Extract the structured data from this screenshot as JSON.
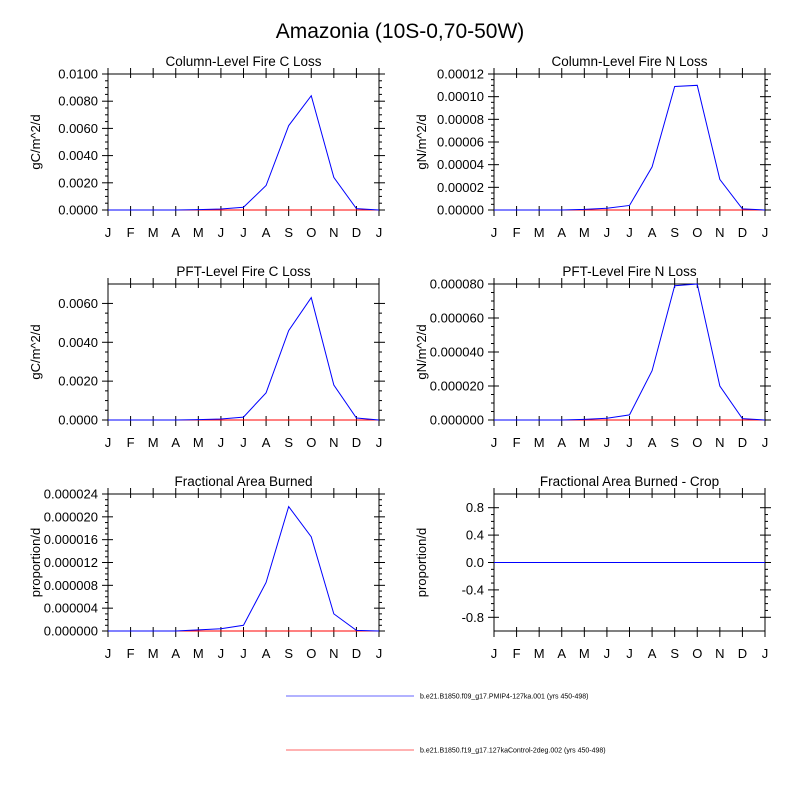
{
  "figure": {
    "title": "Amazonia (10S-0,70-50W)"
  },
  "chart_data": [
    {
      "type": "line",
      "title": "Column-Level Fire C Loss",
      "ylabel": "gC/m^2/d",
      "xlabel": "",
      "categories": [
        "J",
        "F",
        "M",
        "A",
        "M",
        "J",
        "J",
        "A",
        "S",
        "O",
        "N",
        "D",
        "J"
      ],
      "ylim": [
        0,
        0.01
      ],
      "yticks": [
        0,
        0.002,
        0.004,
        0.006,
        0.008,
        0.01
      ],
      "ytick_labels": [
        "0.0000",
        "0.0020",
        "0.0040",
        "0.0060",
        "0.0080",
        "0.0100"
      ],
      "series": [
        {
          "name": "b.e21.B1850.f09_g17.PMIP4-127ka.001 (yrs 450-498)",
          "color": "#0000ff",
          "values": [
            0,
            0,
            0,
            0,
            3e-05,
            7e-05,
            0.0002,
            0.0018,
            0.0062,
            0.0084,
            0.0024,
            0.0001,
            0
          ]
        },
        {
          "name": "b.e21.B1850.f19_g17.127kaControl-2deg.002 (yrs 450-498)",
          "color": "#ff0000",
          "values": [
            0,
            0,
            0,
            0,
            0,
            0,
            0,
            0,
            0,
            0,
            0,
            0,
            0
          ]
        }
      ]
    },
    {
      "type": "line",
      "title": "Column-Level Fire N Loss",
      "ylabel": "gN/m^2/d",
      "xlabel": "",
      "categories": [
        "J",
        "F",
        "M",
        "A",
        "M",
        "J",
        "J",
        "A",
        "S",
        "O",
        "N",
        "D",
        "J"
      ],
      "ylim": [
        0,
        0.00012
      ],
      "yticks": [
        0,
        2e-05,
        4e-05,
        6e-05,
        8e-05,
        0.0001,
        0.00012
      ],
      "ytick_labels": [
        "0.00000",
        "0.00002",
        "0.00004",
        "0.00006",
        "0.00008",
        "0.00010",
        "0.00012"
      ],
      "series": [
        {
          "name": "b.e21.B1850.f09_g17.PMIP4-127ka.001 (yrs 450-498)",
          "color": "#0000ff",
          "values": [
            0,
            0,
            0,
            0,
            5e-07,
            1.5e-06,
            4e-06,
            3.8e-05,
            0.000109,
            0.00011,
            2.7e-05,
            1e-06,
            0
          ]
        },
        {
          "name": "b.e21.B1850.f19_g17.127kaControl-2deg.002 (yrs 450-498)",
          "color": "#ff0000",
          "values": [
            0,
            0,
            0,
            0,
            0,
            0,
            0,
            0,
            0,
            0,
            0,
            0,
            0
          ]
        }
      ]
    },
    {
      "type": "line",
      "title": "PFT-Level Fire C Loss",
      "ylabel": "gC/m^2/d",
      "xlabel": "",
      "categories": [
        "J",
        "F",
        "M",
        "A",
        "M",
        "J",
        "J",
        "A",
        "S",
        "O",
        "N",
        "D",
        "J"
      ],
      "ylim": [
        0,
        0.007
      ],
      "yticks": [
        0,
        0.002,
        0.004,
        0.006
      ],
      "ytick_labels": [
        "0.0000",
        "0.0020",
        "0.0040",
        "0.0060"
      ],
      "series": [
        {
          "name": "b.e21.B1850.f09_g17.PMIP4-127ka.001 (yrs 450-498)",
          "color": "#0000ff",
          "values": [
            0,
            0,
            0,
            0,
            2e-05,
            5e-05,
            0.00015,
            0.0014,
            0.0046,
            0.0063,
            0.0018,
            0.0001,
            0
          ]
        },
        {
          "name": "b.e21.B1850.f19_g17.127kaControl-2deg.002 (yrs 450-498)",
          "color": "#ff0000",
          "values": [
            0,
            0,
            0,
            0,
            0,
            0,
            0,
            0,
            0,
            0,
            0,
            0,
            0
          ]
        }
      ]
    },
    {
      "type": "line",
      "title": "PFT-Level Fire N Loss",
      "ylabel": "gN/m^2/d",
      "xlabel": "",
      "categories": [
        "J",
        "F",
        "M",
        "A",
        "M",
        "J",
        "J",
        "A",
        "S",
        "O",
        "N",
        "D",
        "J"
      ],
      "ylim": [
        0,
        8e-05
      ],
      "yticks": [
        0,
        2e-05,
        4e-05,
        6e-05,
        8e-05
      ],
      "ytick_labels": [
        "0.000000",
        "0.000020",
        "0.000040",
        "0.000060",
        "0.000080"
      ],
      "series": [
        {
          "name": "b.e21.B1850.f09_g17.PMIP4-127ka.001 (yrs 450-498)",
          "color": "#0000ff",
          "values": [
            0,
            0,
            0,
            0,
            4e-07,
            1e-06,
            3e-06,
            2.9e-05,
            7.9e-05,
            8e-05,
            2e-05,
            8e-07,
            0
          ]
        },
        {
          "name": "b.e21.B1850.f19_g17.127kaControl-2deg.002 (yrs 450-498)",
          "color": "#ff0000",
          "values": [
            0,
            0,
            0,
            0,
            0,
            0,
            0,
            0,
            0,
            0,
            0,
            0,
            0
          ]
        }
      ]
    },
    {
      "type": "line",
      "title": "Fractional Area Burned",
      "ylabel": "proportion/d",
      "xlabel": "",
      "categories": [
        "J",
        "F",
        "M",
        "A",
        "M",
        "J",
        "J",
        "A",
        "S",
        "O",
        "N",
        "D",
        "J"
      ],
      "ylim": [
        0,
        2.4e-05
      ],
      "yticks": [
        0,
        4e-06,
        8e-06,
        1.2e-05,
        1.6e-05,
        2e-05,
        2.4e-05
      ],
      "ytick_labels": [
        "0.000000",
        "0.000004",
        "0.000008",
        "0.000012",
        "0.000016",
        "0.000020",
        "0.000024"
      ],
      "series": [
        {
          "name": "b.e21.B1850.f09_g17.PMIP4-127ka.001 (yrs 450-498)",
          "color": "#0000ff",
          "values": [
            0,
            0,
            0,
            0,
            2e-07,
            4e-07,
            1e-06,
            8.5e-06,
            2.18e-05,
            1.65e-05,
            3e-06,
            1e-07,
            0
          ]
        },
        {
          "name": "b.e21.B1850.f19_g17.127kaControl-2deg.002 (yrs 450-498)",
          "color": "#ff0000",
          "values": [
            0,
            0,
            0,
            0,
            0,
            0,
            0,
            0,
            0,
            0,
            0,
            0,
            0
          ]
        }
      ]
    },
    {
      "type": "line",
      "title": "Fractional Area Burned - Crop",
      "ylabel": "proportion/d",
      "xlabel": "",
      "categories": [
        "J",
        "F",
        "M",
        "A",
        "M",
        "J",
        "J",
        "A",
        "S",
        "O",
        "N",
        "D",
        "J"
      ],
      "ylim": [
        -1,
        1
      ],
      "yticks": [
        -0.8,
        -0.4,
        0,
        0.4,
        0.8
      ],
      "ytick_labels": [
        "-0.8",
        "-0.4",
        "0.0",
        "0.4",
        "0.8"
      ],
      "series": [
        {
          "name": "b.e21.B1850.f09_g17.PMIP4-127ka.001 (yrs 450-498)",
          "color": "#0000ff",
          "values": [
            0,
            0,
            0,
            0,
            0,
            0,
            0,
            0,
            0,
            0,
            0,
            0,
            0
          ]
        },
        {
          "name": "b.e21.B1850.f19_g17.127kaControl-2deg.002 (yrs 450-498)",
          "color": "#ff0000",
          "values": [
            0,
            0,
            0,
            0,
            0,
            0,
            0,
            0,
            0,
            0,
            0,
            0,
            0
          ]
        }
      ]
    }
  ],
  "legend": {
    "placement": "bottom-center",
    "entries": [
      {
        "label": "b.e21.B1850.f09_g17.PMIP4-127ka.001 (yrs 450-498)",
        "color": "#0000ff"
      },
      {
        "label": "b.e21.B1850.f19_g17.127kaControl-2deg.002 (yrs 450-498)",
        "color": "#ff0000"
      }
    ]
  }
}
